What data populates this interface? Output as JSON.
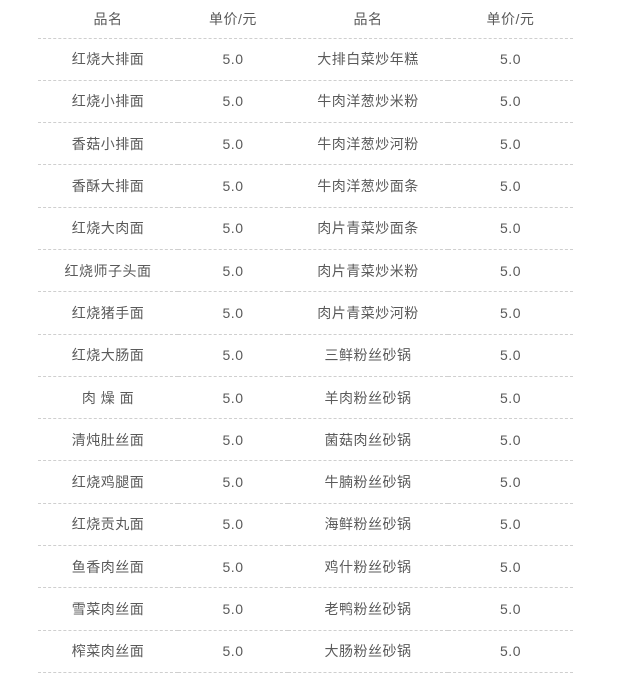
{
  "table": {
    "headers": [
      "品名",
      "单价/元",
      "品名",
      "单价/元"
    ],
    "rows": [
      [
        "红烧大排面",
        "5.0",
        "大排白菜炒年糕",
        "5.0"
      ],
      [
        "红烧小排面",
        "5.0",
        "牛肉洋葱炒米粉",
        "5.0"
      ],
      [
        "香菇小排面",
        "5.0",
        "牛肉洋葱炒河粉",
        "5.0"
      ],
      [
        "香酥大排面",
        "5.0",
        "牛肉洋葱炒面条",
        "5.0"
      ],
      [
        "红烧大肉面",
        "5.0",
        "肉片青菜炒面条",
        "5.0"
      ],
      [
        "红烧师子头面",
        "5.0",
        "肉片青菜炒米粉",
        "5.0"
      ],
      [
        "红烧猪手面",
        "5.0",
        "肉片青菜炒河粉",
        "5.0"
      ],
      [
        "红烧大肠面",
        "5.0",
        "三鲜粉丝砂锅",
        "5.0"
      ],
      [
        "肉 燥 面",
        "5.0",
        "羊肉粉丝砂锅",
        "5.0"
      ],
      [
        "清炖肚丝面",
        "5.0",
        "菌菇肉丝砂锅",
        "5.0"
      ],
      [
        "红烧鸡腿面",
        "5.0",
        "牛腩粉丝砂锅",
        "5.0"
      ],
      [
        "红烧贡丸面",
        "5.0",
        "海鲜粉丝砂锅",
        "5.0"
      ],
      [
        "鱼香肉丝面",
        "5.0",
        "鸡什粉丝砂锅",
        "5.0"
      ],
      [
        "雪菜肉丝面",
        "5.0",
        "老鸭粉丝砂锅",
        "5.0"
      ],
      [
        "榨菜肉丝面",
        "5.0",
        "大肠粉丝砂锅",
        "5.0"
      ]
    ],
    "colors": {
      "text": "#5a5a5a",
      "divider": "#cfcfcf",
      "background": "#ffffff"
    }
  }
}
